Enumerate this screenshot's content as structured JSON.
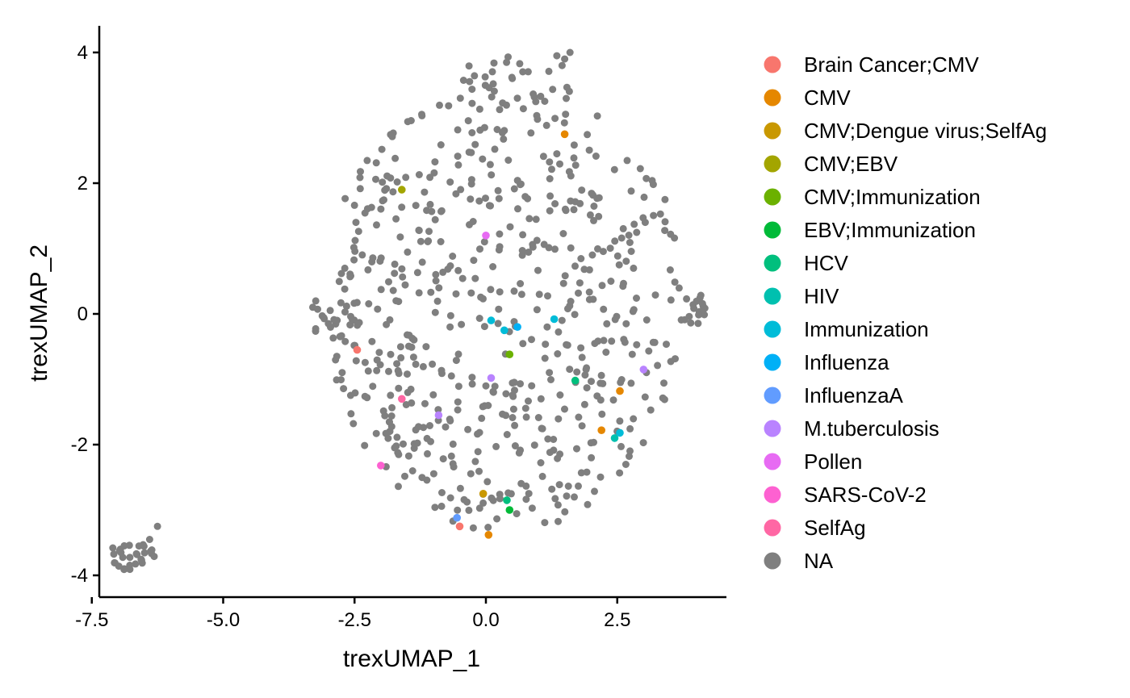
{
  "chart_data": {
    "type": "scatter",
    "title": "",
    "xlabel": "trexUMAP_1",
    "ylabel": "trexUMAP_2",
    "xlim": [
      -7.6,
      4.9
    ],
    "ylim": [
      -4.3,
      4.4
    ],
    "x_ticks": [
      -7.5,
      -5.0,
      -2.5,
      0.0,
      2.5
    ],
    "x_tick_labels": [
      "-7.5",
      "-5.0",
      "-2.5",
      "0.0",
      "2.5"
    ],
    "y_ticks": [
      4,
      2,
      0,
      -2,
      -4
    ],
    "y_tick_labels": [
      "4",
      "2",
      "0",
      "-2",
      "-4"
    ],
    "grid": false,
    "legend_position": "right",
    "series": [
      {
        "name": "Brain Cancer;CMV",
        "color": "#F8766D",
        "points": [
          [
            -0.5,
            -3.25
          ],
          [
            -2.45,
            -0.55
          ]
        ]
      },
      {
        "name": "CMV",
        "color": "#E58700",
        "points": [
          [
            1.5,
            2.75
          ],
          [
            2.55,
            -1.18
          ],
          [
            2.2,
            -1.78
          ],
          [
            0.05,
            -3.38
          ]
        ]
      },
      {
        "name": "CMV;Dengue virus;SelfAg",
        "color": "#C99800",
        "points": [
          [
            -0.05,
            -2.75
          ]
        ]
      },
      {
        "name": "CMV;EBV",
        "color": "#A3A500",
        "points": [
          [
            -1.6,
            1.9
          ]
        ]
      },
      {
        "name": "CMV;Immunization",
        "color": "#6BB100",
        "points": [
          [
            0.45,
            -0.62
          ]
        ]
      },
      {
        "name": "EBV;Immunization",
        "color": "#00BA38",
        "points": [
          [
            0.45,
            -3.0
          ]
        ]
      },
      {
        "name": "HCV",
        "color": "#00BF7D",
        "points": [
          [
            1.7,
            -1.02
          ],
          [
            0.4,
            -2.85
          ]
        ]
      },
      {
        "name": "HIV",
        "color": "#00C0AF",
        "points": [
          [
            2.45,
            -1.9
          ]
        ]
      },
      {
        "name": "Immunization",
        "color": "#00BCD8",
        "points": [
          [
            0.1,
            -0.1
          ],
          [
            0.35,
            -0.25
          ],
          [
            1.3,
            -0.08
          ],
          [
            2.55,
            -1.82
          ]
        ]
      },
      {
        "name": "Influenza",
        "color": "#00B0F6",
        "points": [
          [
            0.6,
            -0.2
          ]
        ]
      },
      {
        "name": "InfluenzaA",
        "color": "#619CFF",
        "points": [
          [
            -0.55,
            -3.12
          ]
        ]
      },
      {
        "name": "M.tuberculosis",
        "color": "#B983FF",
        "points": [
          [
            0.1,
            -0.98
          ],
          [
            -0.9,
            -1.55
          ],
          [
            3.0,
            -0.85
          ]
        ]
      },
      {
        "name": "Pollen",
        "color": "#E76BF3",
        "points": [
          [
            0.0,
            1.2
          ]
        ]
      },
      {
        "name": "SARS-CoV-2",
        "color": "#FD61D1",
        "points": [
          [
            -2.0,
            -2.32
          ]
        ]
      },
      {
        "name": "SelfAg",
        "color": "#FF67A4",
        "points": [
          [
            -1.6,
            -1.3
          ]
        ]
      },
      {
        "name": "NA",
        "color": "#7F7F7F",
        "note_points": "main cloud approx. x -3.5..4.2, y -3.4..4.0; outlier cluster near (-6.7, -3.7)"
      }
    ]
  }
}
